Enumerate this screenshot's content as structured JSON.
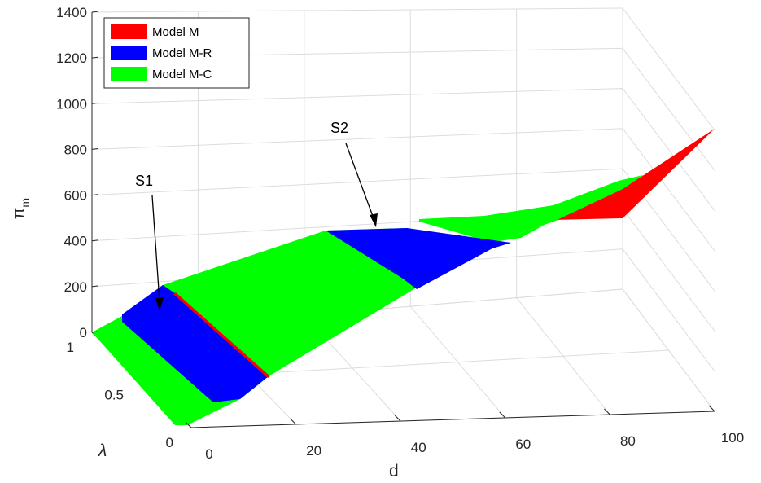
{
  "chart_data": {
    "type": "surface3d",
    "xlabel": "d",
    "ylabel": "λ",
    "zlabel": "π",
    "zlabel_subscript": "m",
    "xlim": [
      0,
      100
    ],
    "ylim": [
      0,
      1
    ],
    "zlim": [
      0,
      1400
    ],
    "x_ticks": [
      "0",
      "20",
      "40",
      "60",
      "80",
      "100"
    ],
    "y_ticks": [
      "0",
      "0.5",
      "1"
    ],
    "z_ticks": [
      "0",
      "200",
      "400",
      "600",
      "800",
      "1000",
      "1200",
      "1400"
    ],
    "grid": true,
    "legend_position": "top-left",
    "legend": [
      {
        "label": "Model M",
        "color": "#ff0000"
      },
      {
        "label": "Model M-R",
        "color": "#0000ff"
      },
      {
        "label": "Model M-C",
        "color": "#00ff00"
      }
    ],
    "annotations": [
      {
        "text": "S1",
        "region": "Model M-R"
      },
      {
        "text": "S2",
        "region": "Model M-R"
      }
    ]
  }
}
